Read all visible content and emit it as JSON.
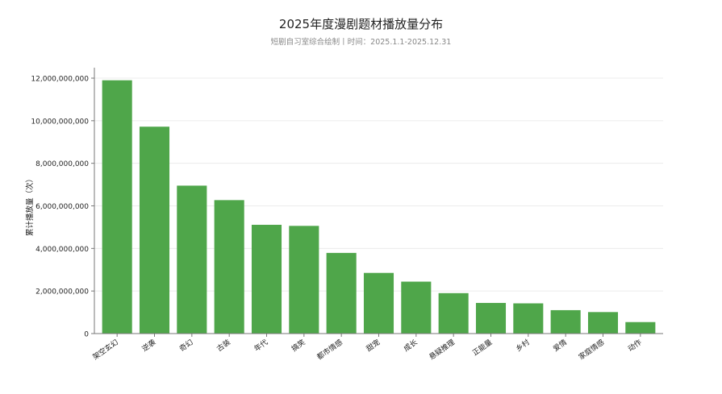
{
  "chart_data": {
    "type": "bar",
    "title": "2025年度漫剧题材播放量分布",
    "subtitle": "短剧自习室综合绘制丨时间：2025.1.1-2025.12.31",
    "xlabel": "",
    "ylabel": "累计播放量（次）",
    "categories": [
      "架空玄幻",
      "逆袭",
      "奇幻",
      "古装",
      "年代",
      "搞笑",
      "都市情感",
      "甜宠",
      "成长",
      "悬疑推理",
      "正能量",
      "乡村",
      "爱情",
      "家庭情感",
      "动作"
    ],
    "values": [
      11900000000,
      9720000000,
      6950000000,
      6270000000,
      5110000000,
      5060000000,
      3790000000,
      2850000000,
      2440000000,
      1900000000,
      1440000000,
      1420000000,
      1100000000,
      1010000000,
      540000000
    ],
    "ylim": [
      0,
      12000000000
    ],
    "yticks": [
      0,
      2000000000,
      4000000000,
      6000000000,
      8000000000,
      10000000000,
      12000000000
    ],
    "ytick_labels": [
      "0",
      "2,000,000,000",
      "4,000,000,000",
      "6,000,000,000",
      "8,000,000,000",
      "10,000,000,000",
      "12,000,000,000"
    ],
    "grid": true,
    "legend": "none",
    "bar_color": "#4fa64a",
    "grid_color": "#ececec",
    "axis_color": "#777777"
  }
}
